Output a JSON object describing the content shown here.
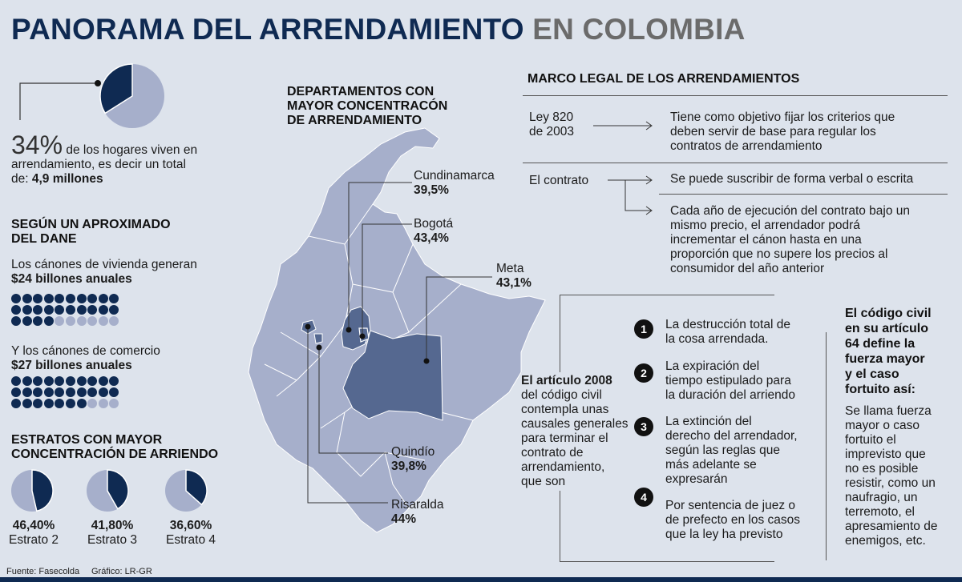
{
  "header": {
    "title_main": "PANORAMA DEL ARRENDAMIENTO",
    "title_accent": "EN COLOMBIA"
  },
  "households": {
    "percent": "34%",
    "text_line1": "de los hogares viven en",
    "text_line2": "arrendamiento, es decir un total",
    "text_line3_prefix": "de:",
    "text_line3_value": "4,9 millones",
    "pie_share": 0.34
  },
  "dane": {
    "heading_line1": "SEGÚN UN APROXIMADO",
    "heading_line2": "DEL DANE",
    "vivienda_text": "Los cánones de vivienda generan",
    "vivienda_value": "$24 billones anuales",
    "vivienda_filled": 24,
    "comercio_text": "Y los cánones de comercio",
    "comercio_value": "$27 billones anuales",
    "comercio_filled": 27,
    "dots_total": 30
  },
  "estratos": {
    "heading_line1": "ESTRATOS CON MAYOR",
    "heading_line2": "CONCENTRACIÓN DE ARRIENDO",
    "items": [
      {
        "value": "46,40%",
        "label": "Estrato 2",
        "share": 0.464
      },
      {
        "value": "41,80%",
        "label": "Estrato 3",
        "share": 0.418
      },
      {
        "value": "36,60%",
        "label": "Estrato 4",
        "share": 0.366
      }
    ]
  },
  "map": {
    "heading_line1": "DEPARTAMENTOS CON",
    "heading_line2": "MAYOR CONCENTRACÓN",
    "heading_line3": "DE ARRENDAMIENTO",
    "cundinamarca": {
      "name": "Cundinamarca",
      "value": "39,5%"
    },
    "bogota": {
      "name": "Bogotá",
      "value": "43,4%"
    },
    "meta": {
      "name": "Meta",
      "value": "43,1%"
    },
    "quindio": {
      "name": "Quindío",
      "value": "39,8%"
    },
    "risaralda": {
      "name": "Risaralda",
      "value": "44%"
    },
    "colors": {
      "land": "#a6afcb",
      "highlight": "#556890",
      "border": "#ffffff"
    }
  },
  "marco": {
    "heading": "MARCO LEGAL DE LOS ARRENDAMIENTOS",
    "ley_line1": "Ley 820",
    "ley_line2": "de 2003",
    "ley_desc_line1": "Tiene como objetivo fijar los criterios que",
    "ley_desc_line2": "deben servir de base para regular los",
    "ley_desc_line3": "contratos de arrendamiento",
    "contrato_label": "El contrato",
    "contrato_desc1": "Se puede suscribir de forma verbal o escrita",
    "contrato_desc2_line1": "Cada año de ejecución del contrato bajo un",
    "contrato_desc2_line2": "mismo precio, el arrendador podrá",
    "contrato_desc2_line3": "incrementar el cánon hasta en una",
    "contrato_desc2_line4": "proporción que no supere los precios al",
    "contrato_desc2_line5": "consumidor del año anterior"
  },
  "articulo": {
    "line1": "El artículo 2008",
    "line2": "del código civil",
    "line3": "contempla unas",
    "line4": "causales generales",
    "line5": "para terminar el",
    "line6": "contrato de",
    "line7": "arrendamiento,",
    "line8": "que son",
    "causales": [
      {
        "num": "1",
        "l1": "La destrucción total de",
        "l2": "la cosa arrendada.",
        "l3": "",
        "l4": ""
      },
      {
        "num": "2",
        "l1": "La expiración del",
        "l2": "tiempo estipulado para",
        "l3": "la duración del arriendo",
        "l4": ""
      },
      {
        "num": "3",
        "l1": "La extinción del",
        "l2": "derecho del arrendador,",
        "l3": "según las reglas que",
        "l4": "más adelante se",
        "l5": "expresarán"
      },
      {
        "num": "4",
        "l1": "Por sentencia de juez o",
        "l2": "de prefecto en los casos",
        "l3": "que la ley ha previsto",
        "l4": ""
      }
    ]
  },
  "codigo": {
    "h1": "El código civil",
    "h2": "en su artículo",
    "h3": "64 define la",
    "h4": "fuerza mayor",
    "h5": "y el caso",
    "h6": "fortuito así:",
    "b1": "Se llama fuerza",
    "b2": "mayor o caso",
    "b3": "fortuito el",
    "b4": "imprevisto que",
    "b5": "no es posible",
    "b6": "resistir, como un",
    "b7": "naufragio, un",
    "b8": "terremoto, el",
    "b9": "apresamiento de",
    "b10": "enemigos, etc."
  },
  "footer": {
    "source": "Fuente: Fasecolda",
    "credit": "Gráfico: LR-GR"
  }
}
